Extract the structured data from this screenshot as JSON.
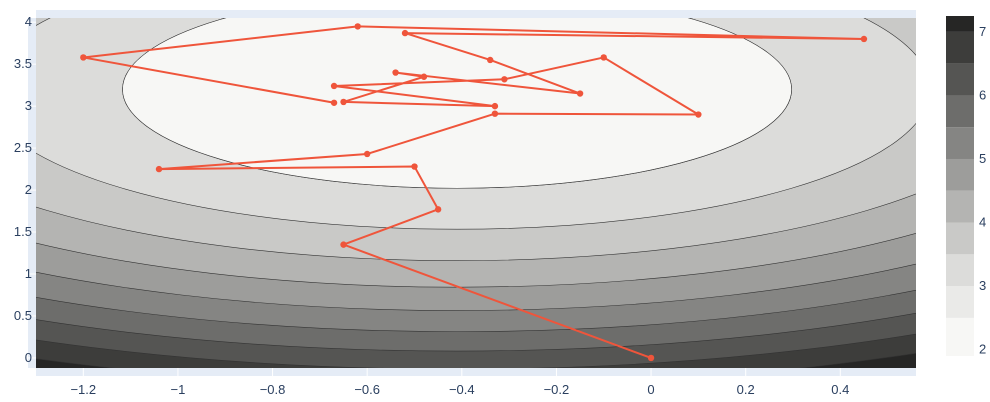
{
  "chart_data": {
    "type": "contour",
    "title": "",
    "xlabel": "",
    "ylabel": "",
    "xlim": [
      -1.3,
      0.56
    ],
    "ylim": [
      -0.12,
      4.05
    ],
    "x_ticks": [
      -1.2,
      -1,
      -0.8,
      -0.6,
      -0.4,
      -0.2,
      0,
      0.2,
      0.4
    ],
    "x_tick_labels": [
      "−1.2",
      "−1",
      "−0.8",
      "−0.6",
      "−0.4",
      "−0.2",
      "0",
      "0.2",
      "0.4"
    ],
    "y_ticks": [
      0,
      0.5,
      1,
      1.5,
      2,
      2.5,
      3,
      3.5,
      4
    ],
    "y_tick_labels": [
      "0",
      "0.5",
      "1",
      "1.5",
      "2",
      "2.5",
      "3",
      "3.5",
      "4"
    ],
    "contour_surface": {
      "minimum": {
        "x": -0.41,
        "y": 3.2,
        "z": 2.0
      },
      "x_weight": 1.0,
      "y_weight": 0.36,
      "levels": [
        2.5,
        3,
        3.5,
        4,
        4.5,
        5,
        5.5,
        6,
        6.5,
        7
      ],
      "colorscale": [
        "#f7f7f5",
        "#eaeae8",
        "#dcdcda",
        "#c9c9c7",
        "#b4b4b2",
        "#9d9d9b",
        "#858583",
        "#6d6d6b",
        "#555553",
        "#3d3d3b",
        "#262625",
        "#0a0a0a"
      ]
    },
    "colorbar": {
      "range": [
        1.9,
        7.25
      ],
      "ticks": [
        2,
        3,
        4,
        5,
        6,
        7
      ],
      "tick_labels": [
        "2",
        "3",
        "4",
        "5",
        "6",
        "7"
      ]
    },
    "series": [
      {
        "mode": "lines+markers",
        "color": "#ef553b",
        "x": [
          0.0,
          -0.65,
          -0.45,
          -0.5,
          -1.04,
          -0.6,
          -0.33,
          0.1,
          -0.1,
          -0.31,
          -0.67,
          -0.33,
          -0.65,
          -0.48,
          -0.54,
          -0.15,
          -0.34,
          -0.52,
          0.45,
          -0.62,
          -1.2,
          -0.67
        ],
        "y": [
          0.0,
          1.35,
          1.77,
          2.28,
          2.25,
          2.43,
          2.91,
          2.9,
          3.58,
          3.32,
          3.24,
          3.0,
          3.05,
          3.35,
          3.4,
          3.15,
          3.55,
          3.87,
          3.8,
          3.95,
          3.58,
          3.04
        ]
      }
    ]
  }
}
